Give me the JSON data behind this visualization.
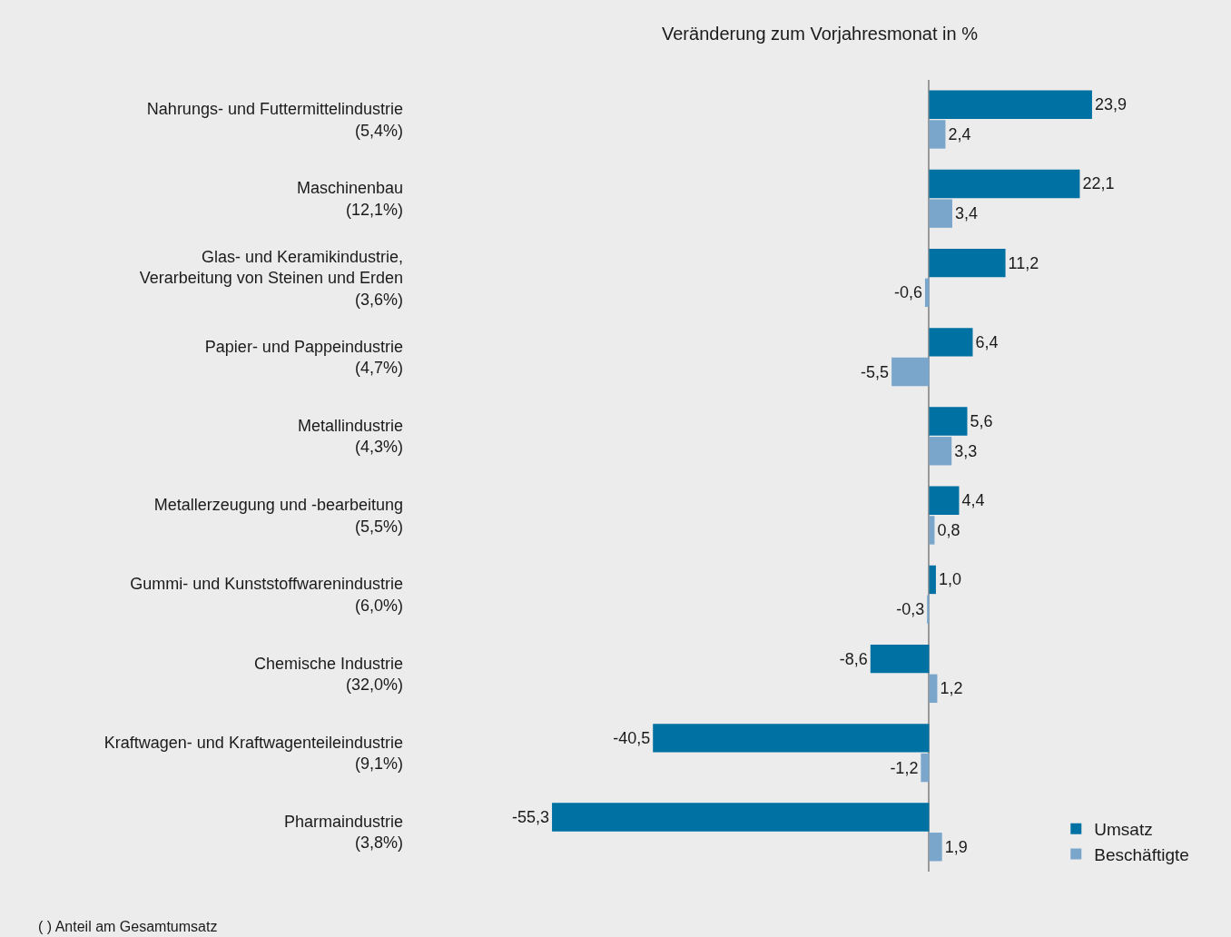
{
  "chart_data": {
    "type": "bar",
    "orientation": "horizontal",
    "title": "Veränderung zum Vorjahresmonat in %",
    "categories": [
      "Nahrungs- und Futtermittelindustrie\n(5,4%)",
      "Maschinenbau\n(12,1%)",
      "Glas- und Keramikindustrie,\nVerarbeitung von Steinen und Erden\n(3,6%)",
      "Papier- und Pappeindustrie\n(4,7%)",
      "Metallindustrie\n(4,3%)",
      "Metallerzeugung und -bearbeitung\n(5,5%)",
      "Gummi- und Kunststoffwarenindustrie\n(6,0%)",
      "Chemische Industrie\n(32,0%)",
      "Kraftwagen- und Kraftwagenteileindustrie\n(9,1%)",
      "Pharmaindustrie\n(3,8%)"
    ],
    "series": [
      {
        "name": "Umsatz",
        "color": "#0071a3",
        "values": [
          23.9,
          22.1,
          11.2,
          6.4,
          5.6,
          4.4,
          1.0,
          -8.6,
          -40.5,
          -55.3
        ],
        "value_labels": [
          "23,9",
          "22,1",
          "11,2",
          "6,4",
          "5,6",
          "4,4",
          "1,0",
          "-8,6",
          "-40,5",
          "-55,3"
        ]
      },
      {
        "name": "Beschäftigte",
        "color": "#7aa6cc",
        "values": [
          2.4,
          3.4,
          -0.6,
          -5.5,
          3.3,
          0.8,
          -0.3,
          1.2,
          -1.2,
          1.9
        ],
        "value_labels": [
          "2,4",
          "3,4",
          "-0,6",
          "-5,5",
          "3,3",
          "0,8",
          "-0,3",
          "1,2",
          "-1,2",
          "1,9"
        ]
      }
    ],
    "grid": false,
    "legend": "bottom right",
    "annotations": [
      "( ) Anteil am Gesamtumsatz"
    ]
  }
}
